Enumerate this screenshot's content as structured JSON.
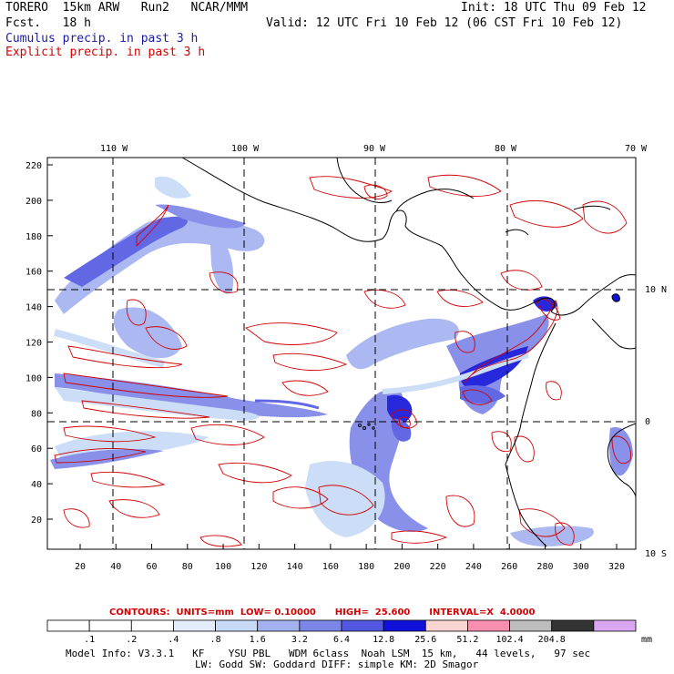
{
  "header": {
    "model": "TORERO  15km ARW   Run2   NCAR/MMM",
    "forecast": "Fcst.   18 h",
    "init": "Init: 18 UTC Thu 09 Feb 12",
    "valid": "Valid: 12 UTC Fri 10 Feb 12 (06 CST Fri 10 Feb 12)",
    "cumulus": "Cumulus precip. in past 3 h",
    "explicit": "Explicit precip. in past 3 h"
  },
  "colors": {
    "cumulus_text": "#1a1aa8",
    "explicit": "#d40000",
    "land": "#000000",
    "grid": "#000000"
  },
  "axes": {
    "top_labels": [
      "110 W",
      "100 W",
      "90 W",
      "80 W",
      "70 W"
    ],
    "right_labels": [
      "10 N",
      "0",
      "10 S"
    ],
    "left_ticks": [
      "220",
      "200",
      "180",
      "160",
      "140",
      "120",
      "100",
      "80",
      "60",
      "40",
      "20"
    ],
    "bottom_ticks": [
      "20",
      "40",
      "60",
      "80",
      "100",
      "120",
      "140",
      "160",
      "180",
      "200",
      "220",
      "240",
      "260",
      "280",
      "300",
      "320"
    ]
  },
  "contours": {
    "label": "CONTOURS:  UNITS=mm  LOW= 0.10000      HIGH=  25.600      INTERVAL=X  4.0000"
  },
  "colorbar": {
    "unit": "mm",
    "ticks": [
      ".1",
      ".2",
      ".4",
      ".8",
      "1.6",
      "3.2",
      "6.4",
      "12.8",
      "25.6",
      "51.2",
      "102.4",
      "204.8"
    ],
    "colors": [
      "#ffffff",
      "#ffffff",
      "#ffffff",
      "#e4ecfb",
      "#c6daf7",
      "#a3b1f0",
      "#7c85e8",
      "#5257e1",
      "#1010d8",
      "#f9d5d2",
      "#f78fb0",
      "#bdbdbd",
      "#333333",
      "#d9a6f2"
    ]
  },
  "footer": {
    "line1": "Model Info: V3.3.1   KF    YSU PBL   WDM 6class  Noah LSM  15 km,   44 levels,   97 sec",
    "line2": "LW: Godd SW: Goddard DIFF: simple KM: 2D Smagor"
  }
}
